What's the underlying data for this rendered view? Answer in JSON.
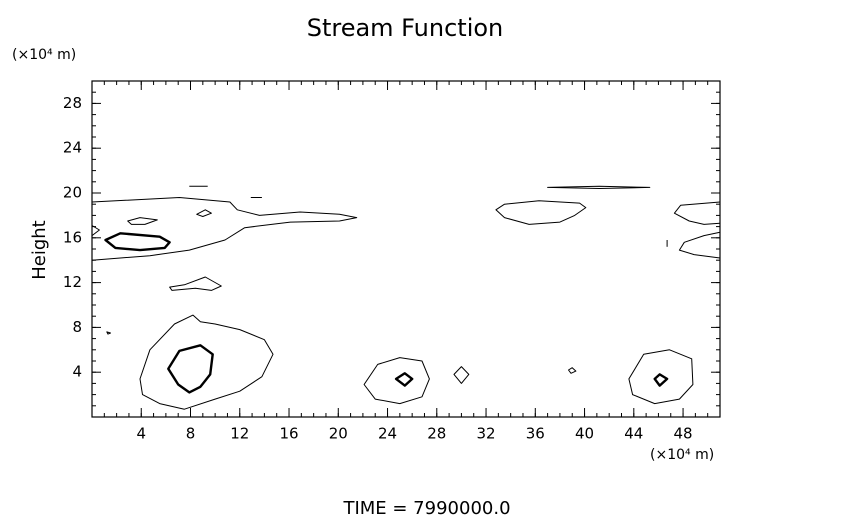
{
  "chart_data": {
    "type": "contour",
    "title": "Stream Function",
    "ylabel": "Height",
    "y_unit": "(×10⁴ m)",
    "x_unit": "(×10⁴ m)",
    "footer": "TIME = 7990000.0",
    "xlim": [
      0,
      51
    ],
    "ylim": [
      0,
      30
    ],
    "xticks": [
      4,
      8,
      12,
      16,
      20,
      24,
      28,
      32,
      36,
      40,
      44,
      48
    ],
    "yticks": [
      4,
      8,
      12,
      16,
      20,
      24,
      28
    ],
    "color": "#000000",
    "contours": [
      {
        "closed": true,
        "bold": false,
        "x": [
          3.9,
          4.7,
          6.7,
          8.2,
          8.8,
          10.0,
          12.0,
          14.0,
          14.7,
          13.8,
          12.0,
          10.0,
          7.5,
          5.5,
          4.1
        ],
        "y": [
          3.4,
          6.0,
          8.3,
          9.1,
          8.5,
          8.3,
          7.8,
          6.9,
          5.6,
          3.6,
          2.3,
          1.6,
          0.7,
          1.2,
          2.0
        ]
      },
      {
        "closed": true,
        "bold": true,
        "x": [
          6.2,
          7.1,
          8.8,
          9.8,
          9.6,
          8.8,
          7.9,
          7.0
        ],
        "y": [
          4.3,
          5.9,
          6.4,
          5.6,
          3.8,
          2.7,
          2.2,
          2.9
        ]
      },
      {
        "closed": true,
        "bold": false,
        "x": [
          22.1,
          23.2,
          25.0,
          26.8,
          27.4,
          26.8,
          25.0,
          23.0
        ],
        "y": [
          2.9,
          4.7,
          5.3,
          5.0,
          3.4,
          1.8,
          1.2,
          1.6
        ]
      },
      {
        "closed": true,
        "bold": true,
        "x": [
          24.7,
          25.4,
          26.0,
          25.4
        ],
        "y": [
          3.4,
          3.9,
          3.4,
          2.8
        ]
      },
      {
        "closed": true,
        "bold": false,
        "x": [
          29.4,
          30.0,
          30.6,
          30.0
        ],
        "y": [
          3.8,
          4.5,
          3.8,
          3.0
        ]
      },
      {
        "closed": true,
        "bold": false,
        "x": [
          38.7,
          39.0,
          39.3,
          38.9
        ],
        "y": [
          4.2,
          4.4,
          4.1,
          3.9
        ]
      },
      {
        "closed": true,
        "bold": false,
        "x": [
          43.6,
          44.8,
          46.9,
          48.7,
          48.8,
          47.7,
          45.7,
          43.9
        ],
        "y": [
          3.4,
          5.6,
          6.0,
          5.2,
          2.9,
          1.6,
          1.2,
          2.0
        ]
      },
      {
        "closed": true,
        "bold": true,
        "x": [
          45.7,
          46.1,
          46.7,
          46.1
        ],
        "y": [
          3.4,
          3.8,
          3.4,
          2.8
        ]
      },
      {
        "closed": false,
        "bold": false,
        "x": [
          0,
          7.1,
          11.2,
          11.8,
          13.6,
          16.9,
          20.1,
          21.5,
          20.1,
          16.1,
          12.4,
          10.8,
          7.9,
          4.7,
          2.3,
          0
        ],
        "y": [
          19.2,
          19.6,
          19.2,
          18.5,
          18.0,
          18.3,
          18.1,
          17.8,
          17.5,
          17.4,
          16.9,
          15.8,
          14.9,
          14.4,
          14.2,
          14.0
        ]
      },
      {
        "closed": true,
        "bold": true,
        "x": [
          1.1,
          2.3,
          5.5,
          6.3,
          5.9,
          3.9,
          1.9
        ],
        "y": [
          15.8,
          16.4,
          16.1,
          15.6,
          15.1,
          14.9,
          15.1
        ]
      },
      {
        "closed": true,
        "bold": false,
        "x": [
          2.9,
          3.9,
          5.3,
          4.3,
          3.2
        ],
        "y": [
          17.5,
          17.8,
          17.6,
          17.2,
          17.2
        ]
      },
      {
        "closed": true,
        "bold": false,
        "x": [
          8.5,
          9.2,
          9.7,
          9.0
        ],
        "y": [
          18.1,
          18.5,
          18.2,
          17.9
        ]
      },
      {
        "closed": false,
        "bold": false,
        "x": [
          0,
          0.6,
          0
        ],
        "y": [
          17.1,
          16.7,
          16.2
        ]
      },
      {
        "closed": false,
        "bold": false,
        "x": [
          7.9,
          9.4
        ],
        "y": [
          20.6,
          20.6
        ]
      },
      {
        "closed": false,
        "bold": false,
        "x": [
          12.9,
          13.8
        ],
        "y": [
          19.6,
          19.6
        ]
      },
      {
        "closed": true,
        "bold": false,
        "x": [
          6.3,
          7.5,
          9.2,
          10.5,
          9.7,
          8.4,
          6.5
        ],
        "y": [
          11.6,
          11.8,
          12.5,
          11.7,
          11.3,
          11.5,
          11.3
        ]
      },
      {
        "closed": true,
        "bold": false,
        "x": [
          1.2,
          1.5,
          1.3
        ],
        "y": [
          7.6,
          7.5,
          7.4
        ]
      },
      {
        "closed": true,
        "bold": false,
        "x": [
          32.8,
          33.5,
          36.3,
          39.6,
          40.1,
          39.2,
          38.0,
          35.5,
          33.5
        ],
        "y": [
          18.5,
          19.0,
          19.3,
          19.1,
          18.7,
          18.0,
          17.4,
          17.2,
          17.8
        ]
      },
      {
        "closed": true,
        "bold": false,
        "x": [
          37.0,
          41.2,
          45.3,
          41.2
        ],
        "y": [
          20.5,
          20.4,
          20.5,
          20.6
        ]
      },
      {
        "closed": false,
        "bold": false,
        "x": [
          51,
          47.8,
          47.3,
          48.5,
          49.7,
          51
        ],
        "y": [
          19.2,
          18.9,
          18.2,
          17.5,
          17.2,
          17.3
        ]
      },
      {
        "closed": false,
        "bold": false,
        "x": [
          51,
          49.7,
          48.1,
          47.7,
          48.9,
          51
        ],
        "y": [
          16.5,
          16.2,
          15.6,
          14.9,
          14.5,
          14.2
        ]
      },
      {
        "closed": false,
        "bold": false,
        "x": [
          46.7,
          46.7
        ],
        "y": [
          15.8,
          15.2
        ]
      }
    ]
  }
}
